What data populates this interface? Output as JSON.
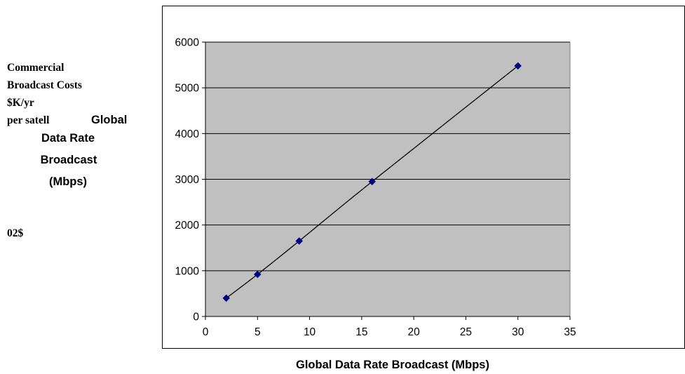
{
  "side_text": {
    "line1": "Commercial",
    "line2": "Broadcast Costs",
    "line3": "$K/yr",
    "line4a": "per satell",
    "line4b": "Global",
    "line5": "Data Rate",
    "line6": "Broadcast",
    "line7": "(Mbps)",
    "stray": "02$"
  },
  "chart_data": {
    "type": "scatter",
    "title": "",
    "xlabel": "Global Data Rate Broadcast (Mbps)",
    "ylabel": "",
    "xlim": [
      0,
      35
    ],
    "ylim": [
      0,
      6000
    ],
    "x_ticks": [
      0,
      5,
      10,
      15,
      20,
      25,
      30,
      35
    ],
    "y_ticks": [
      0,
      1000,
      2000,
      3000,
      4000,
      5000,
      6000
    ],
    "grid": "horizontal",
    "legend": "none",
    "series": [
      {
        "x": [
          2,
          5,
          9,
          16,
          30
        ],
        "y": [
          400,
          920,
          1650,
          2950,
          5480
        ],
        "marker": "diamond",
        "marker_color": "#000080",
        "line": "smooth",
        "line_color": "#000000"
      }
    ],
    "plot_background": "#c0c0c0"
  }
}
